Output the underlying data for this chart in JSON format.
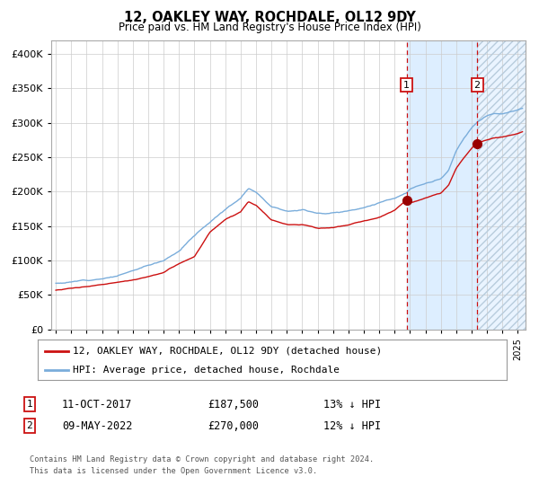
{
  "title": "12, OAKLEY WAY, ROCHDALE, OL12 9DY",
  "subtitle": "Price paid vs. HM Land Registry's House Price Index (HPI)",
  "ylim": [
    0,
    420000
  ],
  "yticks": [
    0,
    50000,
    100000,
    150000,
    200000,
    250000,
    300000,
    350000,
    400000
  ],
  "ytick_labels": [
    "£0",
    "£50K",
    "£100K",
    "£150K",
    "£200K",
    "£250K",
    "£300K",
    "£350K",
    "£400K"
  ],
  "hpi_color": "#7aaddb",
  "price_color": "#cc1111",
  "marker_color": "#990000",
  "vline_color": "#cc1111",
  "grid_color": "#cccccc",
  "bg_color": "#ffffff",
  "plot_bg_color": "#ffffff",
  "shade_color": "#ddeeff",
  "legend_box_color": "#cc1111",
  "transaction1_date": "11-OCT-2017",
  "transaction1_price": "£187,500",
  "transaction1_note": "13% ↓ HPI",
  "transaction2_date": "09-MAY-2022",
  "transaction2_price": "£270,000",
  "transaction2_note": "12% ↓ HPI",
  "footer_line1": "Contains HM Land Registry data © Crown copyright and database right 2024.",
  "footer_line2": "This data is licensed under the Open Government Licence v3.0.",
  "legend1": "12, OAKLEY WAY, ROCHDALE, OL12 9DY (detached house)",
  "legend2": "HPI: Average price, detached house, Rochdale",
  "trans1_x": 2017.78,
  "trans1_y": 187500,
  "trans2_x": 2022.36,
  "trans2_y": 270000,
  "xmin": 1994.7,
  "xmax": 2025.5
}
